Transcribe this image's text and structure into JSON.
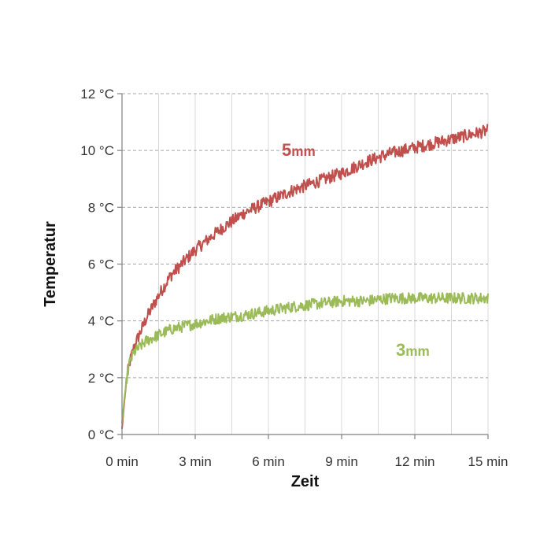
{
  "chart_data": {
    "type": "line",
    "xlabel": "Zeit",
    "ylabel": "Temperatur",
    "xlim": [
      0,
      15
    ],
    "ylim": [
      0,
      12
    ],
    "x_ticks": [
      {
        "value": 0,
        "label": "0 min"
      },
      {
        "value": 3,
        "label": "3 min"
      },
      {
        "value": 6,
        "label": "6 min"
      },
      {
        "value": 9,
        "label": "9 min"
      },
      {
        "value": 12,
        "label": "12 min"
      },
      {
        "value": 15,
        "label": "15 min"
      }
    ],
    "y_ticks": [
      {
        "value": 0,
        "label": "0 °C"
      },
      {
        "value": 2,
        "label": "2 °C"
      },
      {
        "value": 4,
        "label": "4 °C"
      },
      {
        "value": 6,
        "label": "6 °C"
      },
      {
        "value": 8,
        "label": "8 °C"
      },
      {
        "value": 10,
        "label": "10 °C"
      },
      {
        "value": 12,
        "label": "12 °C"
      }
    ],
    "grid": true,
    "series": [
      {
        "key": "5mm",
        "color": "#c0504d",
        "label_main": "5",
        "label_unit": "mm",
        "x": [
          0,
          0.1,
          0.2,
          0.3,
          0.5,
          0.75,
          1.0,
          1.5,
          2.0,
          3.0,
          4.0,
          5.0,
          6.0,
          7.0,
          8.0,
          9.0,
          10.0,
          11.0,
          12.0,
          13.0,
          14.0,
          15.0
        ],
        "y": [
          0.2,
          1.2,
          2.0,
          2.5,
          3.1,
          3.6,
          4.1,
          4.9,
          5.6,
          6.5,
          7.2,
          7.8,
          8.2,
          8.6,
          8.9,
          9.2,
          9.6,
          9.9,
          10.1,
          10.3,
          10.5,
          10.7
        ]
      },
      {
        "key": "3mm",
        "color": "#9bbb59",
        "label_main": "3",
        "label_unit": "mm",
        "x": [
          0,
          0.1,
          0.2,
          0.3,
          0.5,
          0.75,
          1.0,
          1.5,
          2.0,
          3.0,
          4.0,
          5.0,
          6.0,
          7.0,
          8.0,
          9.0,
          10.0,
          11.0,
          12.0,
          13.0,
          14.0,
          15.0
        ],
        "y": [
          0.4,
          1.3,
          2.0,
          2.5,
          2.9,
          3.1,
          3.3,
          3.5,
          3.7,
          3.9,
          4.1,
          4.2,
          4.35,
          4.5,
          4.6,
          4.7,
          4.7,
          4.8,
          4.8,
          4.8,
          4.8,
          4.8
        ]
      }
    ]
  }
}
